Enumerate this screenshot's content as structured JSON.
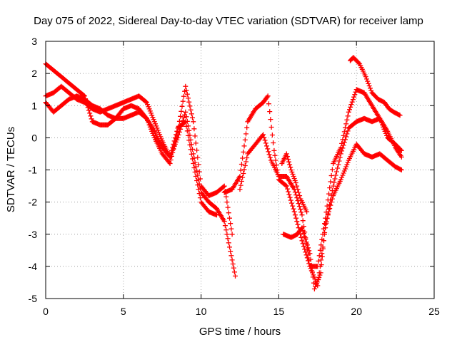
{
  "chart_data": {
    "type": "scatter",
    "title": "Day 075 of 2022, Sidereal Day-to-day VTEC variation (SDTVAR) for receiver lamp",
    "xlabel": "GPS time / hours",
    "ylabel": "SDTVAR / TECUs",
    "xlim": [
      0,
      25
    ],
    "ylim": [
      -5,
      3
    ],
    "xticks": [
      0,
      5,
      10,
      15,
      20,
      25
    ],
    "yticks": [
      -5,
      -4,
      -3,
      -2,
      -1,
      0,
      1,
      2,
      3
    ],
    "grid": true,
    "marker": "+",
    "color": "#ff0000",
    "series": [
      {
        "x": [
          0.0,
          0.5,
          1.0,
          1.5,
          2.0,
          2.5,
          3.0,
          3.5,
          4.0,
          4.5,
          5.0,
          5.5,
          6.0,
          6.5,
          7.0,
          7.5,
          8.0,
          8.5,
          9.0,
          9.5,
          10.0,
          10.5,
          11.0,
          11.5,
          12.0
        ],
        "y": [
          2.3,
          2.1,
          1.9,
          1.7,
          1.5,
          1.3,
          0.5,
          0.4,
          0.4,
          0.6,
          0.9,
          1.0,
          0.9,
          0.6,
          0.0,
          -0.5,
          -0.8,
          0.2,
          1.6,
          0.5,
          -1.5,
          -1.8,
          -1.7,
          -1.5,
          -3.0
        ]
      },
      {
        "x": [
          0.0,
          0.5,
          1.0,
          1.5,
          2.0,
          2.5,
          3.0,
          3.5,
          4.0,
          4.5,
          5.0,
          5.5,
          6.0,
          6.5,
          7.0,
          7.5,
          8.0,
          8.5,
          9.0,
          9.5,
          10.0,
          10.5,
          11.0,
          11.5,
          12.0,
          12.2
        ],
        "y": [
          1.3,
          1.4,
          1.6,
          1.4,
          1.2,
          1.1,
          0.9,
          0.8,
          0.9,
          1.0,
          1.1,
          1.2,
          1.3,
          1.1,
          0.5,
          -0.1,
          -0.6,
          0.0,
          0.8,
          -0.5,
          -1.7,
          -2.0,
          -2.2,
          -2.6,
          -3.8,
          -4.3
        ]
      },
      {
        "x": [
          0.0,
          0.5,
          1.0,
          1.5,
          2.0,
          2.5,
          3.0,
          3.5,
          4.0,
          4.5,
          5.0,
          5.5,
          6.0,
          6.5,
          7.0,
          7.5,
          8.0,
          8.5,
          9.0,
          9.5,
          10.0,
          10.5,
          11.0
        ],
        "y": [
          1.1,
          0.8,
          1.0,
          1.2,
          1.3,
          1.2,
          1.0,
          0.9,
          0.7,
          0.6,
          0.6,
          0.7,
          0.8,
          0.6,
          0.2,
          -0.3,
          -0.6,
          0.3,
          0.5,
          -0.8,
          -2.0,
          -2.3,
          -2.4
        ]
      },
      {
        "x": [
          11.5,
          12.0,
          12.5,
          13.0,
          13.5,
          14.0,
          14.3,
          14.7,
          15.0,
          15.5,
          16.0,
          16.5,
          17.0,
          17.5,
          18.0,
          18.5,
          19.0,
          19.5,
          20.0,
          20.5,
          21.0,
          21.5,
          22.0,
          22.5,
          22.9
        ],
        "y": [
          -1.7,
          -1.6,
          -1.2,
          0.5,
          0.9,
          1.1,
          1.3,
          -0.4,
          -1.3,
          -1.5,
          -2.3,
          -3.2,
          -4.0,
          -4.0,
          -2.5,
          -0.8,
          -0.3,
          0.8,
          1.5,
          1.4,
          1.0,
          0.6,
          0.2,
          -0.3,
          -0.6
        ]
      },
      {
        "x": [
          12.5,
          13.0,
          13.5,
          14.0,
          14.5,
          15.0,
          15.5,
          16.0,
          16.5,
          17.0,
          17.5,
          18.0,
          18.5,
          19.0,
          19.5,
          20.0,
          20.5,
          21.0,
          21.5,
          22.0,
          22.5,
          22.9
        ],
        "y": [
          -1.6,
          -0.5,
          -0.2,
          0.1,
          -0.7,
          -1.2,
          -1.2,
          -1.6,
          -2.4,
          -4.0,
          -4.6,
          -2.8,
          -1.5,
          -0.5,
          0.3,
          0.5,
          0.6,
          0.5,
          0.6,
          0.0,
          -0.2,
          -0.4
        ]
      },
      {
        "x": [
          15.3,
          15.8,
          16.2,
          16.5,
          17.0,
          17.3,
          17.7,
          18.0,
          18.5,
          19.0,
          19.5,
          20.0,
          20.5,
          21.0,
          21.5,
          22.0,
          22.5,
          22.9
        ],
        "y": [
          -3.0,
          -3.1,
          -3.0,
          -2.8,
          -3.6,
          -4.7,
          -4.2,
          -2.7,
          -1.8,
          -1.3,
          -0.7,
          -0.2,
          -0.5,
          -0.6,
          -0.5,
          -0.7,
          -0.9,
          -1.0
        ]
      },
      {
        "x": [
          19.6,
          19.8,
          20.2,
          20.6,
          21.0,
          21.4,
          21.8,
          22.1,
          22.4,
          22.8
        ],
        "y": [
          2.4,
          2.5,
          2.3,
          1.9,
          1.4,
          1.2,
          1.1,
          0.9,
          0.8,
          0.7
        ]
      },
      {
        "x": [
          15.2,
          15.5,
          15.8,
          16.1,
          16.4,
          16.8
        ],
        "y": [
          -0.8,
          -0.5,
          -1.0,
          -1.4,
          -1.9,
          -2.3
        ]
      }
    ]
  }
}
